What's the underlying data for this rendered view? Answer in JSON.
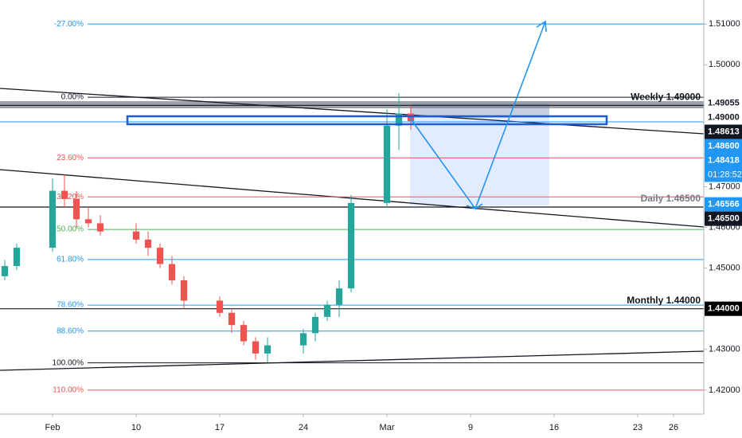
{
  "chart_data": {
    "type": "candlestick",
    "x": [
      -1,
      0,
      3,
      4,
      5,
      6,
      7,
      10,
      11,
      12,
      13,
      14,
      17,
      18,
      19,
      20,
      21,
      24,
      25,
      26,
      27,
      28,
      31,
      32,
      33
    ],
    "open": [
      1.448,
      1.4505,
      1.455,
      1.469,
      1.467,
      1.462,
      1.461,
      1.459,
      1.457,
      1.455,
      1.451,
      1.447,
      1.442,
      1.439,
      1.436,
      1.432,
      1.429,
      1.431,
      1.434,
      1.438,
      1.441,
      1.445,
      1.466,
      1.485,
      1.488
    ],
    "high": [
      1.452,
      1.456,
      1.472,
      1.473,
      1.469,
      1.465,
      1.463,
      1.461,
      1.459,
      1.456,
      1.453,
      1.448,
      1.443,
      1.44,
      1.437,
      1.433,
      1.433,
      1.435,
      1.439,
      1.442,
      1.447,
      1.468,
      1.489,
      1.493,
      1.49
    ],
    "low": [
      1.447,
      1.4495,
      1.454,
      1.465,
      1.46,
      1.46,
      1.458,
      1.456,
      1.453,
      1.45,
      1.446,
      1.44,
      1.438,
      1.434,
      1.431,
      1.4275,
      1.4268,
      1.429,
      1.432,
      1.437,
      1.438,
      1.444,
      1.465,
      1.479,
      1.484
    ],
    "close": [
      1.4505,
      1.455,
      1.469,
      1.467,
      1.462,
      1.461,
      1.459,
      1.457,
      1.455,
      1.451,
      1.447,
      1.442,
      1.439,
      1.436,
      1.432,
      1.429,
      1.431,
      1.434,
      1.438,
      1.441,
      1.445,
      1.466,
      1.485,
      1.488,
      1.48613
    ],
    "up_color": "#26a69a",
    "down_color": "#ef5350",
    "xlim": [
      -1.4,
      57.53
    ],
    "xticks": [
      {
        "value": 3,
        "label": "Feb"
      },
      10,
      17,
      24,
      {
        "value": 31,
        "label": "Mar"
      },
      {
        "value": 38,
        "label": "9"
      },
      {
        "value": 45,
        "label": "16"
      },
      {
        "value": 52,
        "label": "23"
      },
      {
        "value": 55,
        "label": "26"
      }
    ],
    "ylim": [
      1.4141,
      1.5159
    ],
    "yticks": [
      {
        "value": 1.42,
        "label": "1.42000"
      },
      {
        "value": 1.43,
        "label": "1.43000"
      },
      {
        "value": 1.44,
        "label": "1.44000"
      },
      {
        "value": 1.45,
        "label": "1.45000"
      },
      {
        "value": 1.46,
        "label": "1.46000"
      },
      {
        "value": 1.47,
        "label": "1.47000"
      },
      {
        "value": 1.48,
        "label": "1.48000"
      },
      {
        "value": 1.49,
        "label": "1.49000"
      },
      {
        "value": 1.5,
        "label": "1.50000"
      },
      {
        "value": 1.51,
        "label": "1.51000"
      }
    ],
    "fib_levels": [
      {
        "value": 1.51,
        "label": "-27.00%",
        "color": "#2196f3"
      },
      {
        "value": 1.492,
        "label": "0.00%",
        "color": "#131722"
      },
      {
        "value": 1.4771,
        "label": "23.60%",
        "color": "#ef5350"
      },
      {
        "value": 1.4675,
        "label": "38.20%",
        "color": "#ef5350"
      },
      {
        "value": 1.4595,
        "label": "50.00%",
        "color": "#4caf50"
      },
      {
        "value": 1.4521,
        "label": "61.80%",
        "color": "#2196f3"
      },
      {
        "value": 1.4409,
        "label": "78.60%",
        "color": "#2196f3"
      },
      {
        "value": 1.4345,
        "label": "88.60%",
        "color": "#2196f3"
      },
      {
        "value": 1.4267,
        "label": "100.00%",
        "color": "#131722"
      },
      {
        "value": 1.42,
        "label": "110.00%",
        "color": "#ef5350"
      }
    ],
    "levels": [
      {
        "value": 1.49,
        "label": "Weekly 1.49000"
      },
      {
        "value": 1.465,
        "label": "Daily 1.46500"
      },
      {
        "value": 1.44,
        "label": "Monthly 1.44000"
      }
    ],
    "price_badges": [
      {
        "value": 1.49055,
        "label": "1.49055",
        "color": "#ffffff"
      },
      {
        "value": 1.49,
        "label": "1.49000",
        "color": "#ffffff"
      },
      {
        "value": 1.48613,
        "label": "1.48613",
        "color": "#131722"
      },
      {
        "value": 1.486,
        "label": "1.48600",
        "color": "#2196f3"
      },
      {
        "value": 1.48418,
        "label": "1.48418",
        "color": "#2196f3"
      },
      {
        "value": 1.46566,
        "label": "1.46566",
        "color": "#2196f3"
      },
      {
        "value": 1.465,
        "label": "1.46500",
        "color": "#131722"
      },
      {
        "value": 1.44,
        "label": "1.44000",
        "color": "#000000"
      }
    ],
    "countdown": "01:28:52"
  }
}
